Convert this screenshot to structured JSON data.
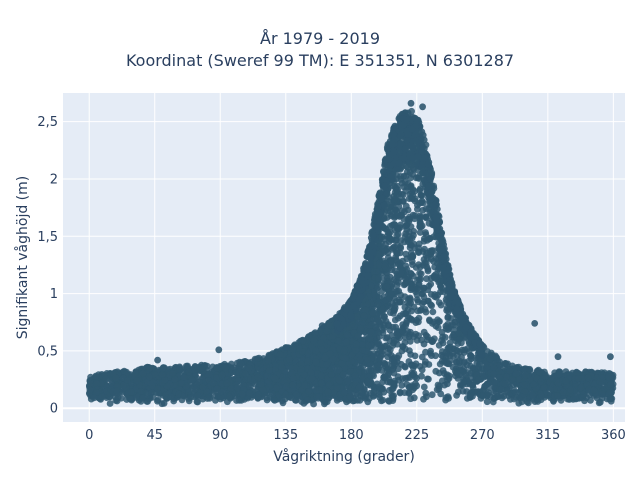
{
  "chart_data": {
    "type": "scatter",
    "title_lines": [
      "År 1979 - 2019",
      "Koordinat (Sweref 99 TM): E 351351, N 6301287"
    ],
    "xlabel": "Vågriktning (grader)",
    "ylabel": "Signifikant våghöjd (m)",
    "xlim": [
      -18,
      368
    ],
    "ylim": [
      -0.12,
      2.75
    ],
    "x_ticks": [
      0,
      45,
      90,
      135,
      180,
      225,
      270,
      315,
      360
    ],
    "x_tick_labels": [
      "0",
      "45",
      "90",
      "135",
      "180",
      "225",
      "270",
      "315",
      "360"
    ],
    "y_ticks": [
      0,
      0.5,
      1,
      1.5,
      2,
      2.5
    ],
    "y_tick_labels": [
      "0",
      "0,5",
      "1",
      "1,5",
      "2",
      "2,5"
    ],
    "grid": true,
    "marker_color": "#2f5870",
    "plot_background": "#e5ecf6",
    "envelope": {
      "direction_deg": [
        0,
        10,
        20,
        30,
        40,
        50,
        60,
        70,
        80,
        90,
        100,
        110,
        120,
        130,
        140,
        150,
        160,
        170,
        180,
        185,
        190,
        195,
        200,
        205,
        210,
        215,
        220,
        225,
        230,
        235,
        240,
        245,
        250,
        255,
        260,
        265,
        270,
        280,
        290,
        300,
        310,
        320,
        330,
        340,
        350,
        360
      ],
      "upper_height_m": [
        0.28,
        0.3,
        0.32,
        0.33,
        0.36,
        0.36,
        0.36,
        0.38,
        0.38,
        0.38,
        0.4,
        0.42,
        0.45,
        0.5,
        0.55,
        0.62,
        0.7,
        0.8,
        0.95,
        1.1,
        1.3,
        1.6,
        1.95,
        2.3,
        2.5,
        2.6,
        2.62,
        2.58,
        2.4,
        2.1,
        1.7,
        1.35,
        1.05,
        0.9,
        0.75,
        0.65,
        0.55,
        0.45,
        0.38,
        0.35,
        0.33,
        0.32,
        0.32,
        0.32,
        0.32,
        0.3
      ]
    },
    "highlighted_points": [
      {
        "x": 221,
        "y": 2.66
      },
      {
        "x": 229,
        "y": 2.63
      },
      {
        "x": 306,
        "y": 0.74
      },
      {
        "x": 89,
        "y": 0.51
      },
      {
        "x": 322,
        "y": 0.45
      },
      {
        "x": 358,
        "y": 0.45
      },
      {
        "x": 47,
        "y": 0.42
      },
      {
        "x": 135,
        "y": 0.53
      },
      {
        "x": 160,
        "y": 0.72
      }
    ]
  }
}
